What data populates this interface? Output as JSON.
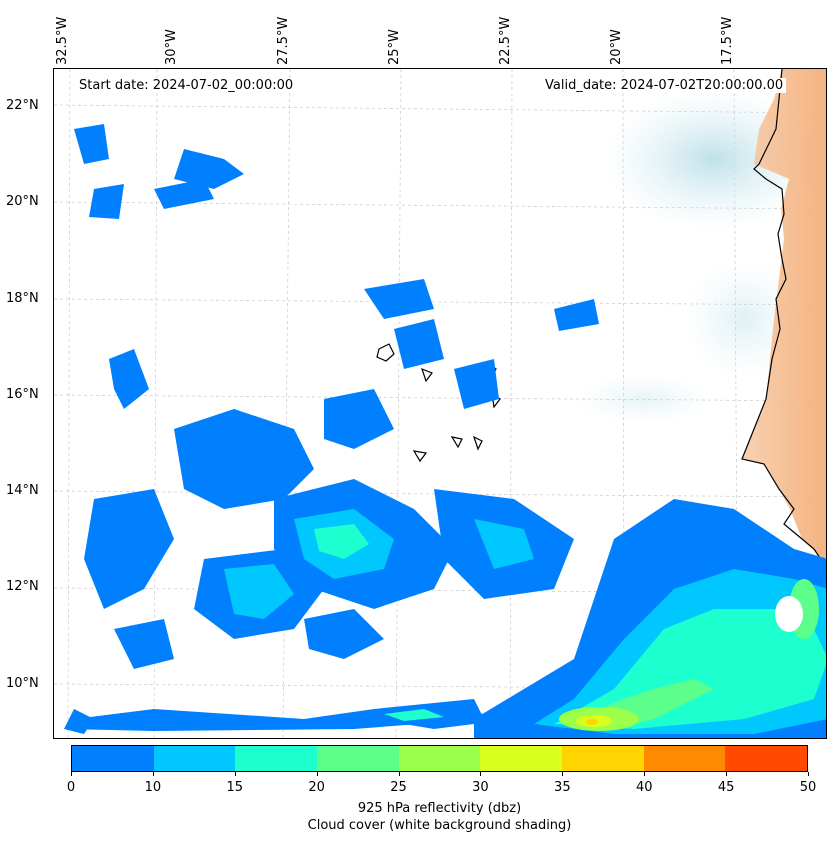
{
  "header": {
    "start_date": "Start date: 2024-07-02_00:00:00",
    "valid_date": "Valid_date: 2024-07-02T20:00:00.00"
  },
  "lon_labels": [
    "32.5°W",
    "30°W",
    "27.5°W",
    "25°W",
    "22.5°W",
    "20°W",
    "17.5°W"
  ],
  "lat_labels": [
    "22°N",
    "20°N",
    "18°N",
    "16°N",
    "14°N",
    "12°N",
    "10°N"
  ],
  "colorbar": {
    "ticks": [
      "0",
      "10",
      "15",
      "20",
      "25",
      "30",
      "35",
      "40",
      "45",
      "50"
    ],
    "colors": [
      "#0080ff",
      "#00c8ff",
      "#1effd0",
      "#5cff8a",
      "#9cff4a",
      "#d8ff1e",
      "#ffd400",
      "#ff8a00",
      "#ff4a00"
    ],
    "label": "925 hPa reflectivity (dbz)",
    "sublabel": "Cloud cover (white background shading)"
  }
}
